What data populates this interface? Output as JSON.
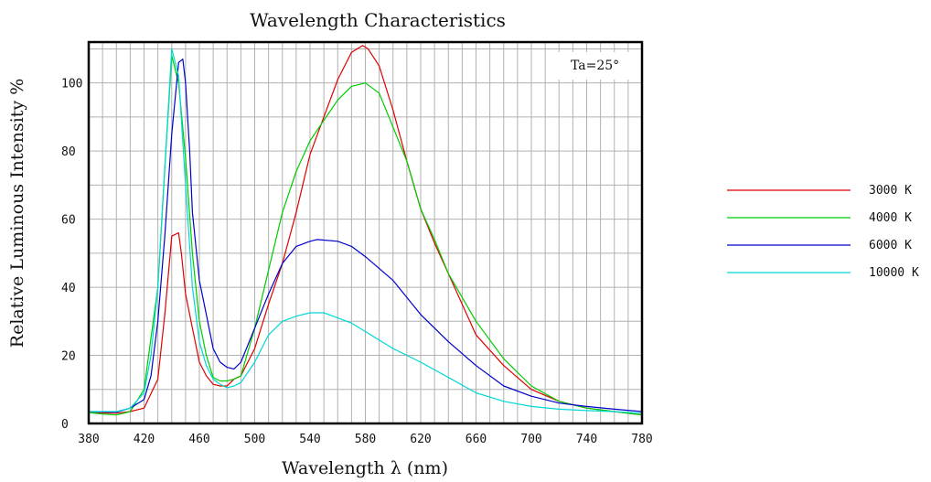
{
  "chart_data": {
    "type": "line",
    "title": "Wavelength Characteristics",
    "xlabel": "Wavelength λ (nm)",
    "ylabel": "Relative Luminous Intensity %",
    "annotation": "Ta=25°",
    "grid": true,
    "legend_position": "right",
    "xlim": [
      380,
      780
    ],
    "ylim": [
      0,
      112
    ],
    "x_ticks": [
      380,
      420,
      460,
      500,
      540,
      580,
      620,
      660,
      700,
      740,
      780
    ],
    "x_tick_labels": [
      "380",
      "420",
      "460",
      "500",
      "540",
      "580",
      "620",
      "660",
      "700",
      "740",
      "780"
    ],
    "y_ticks": [
      0,
      20,
      40,
      60,
      80,
      100
    ],
    "y_tick_labels": [
      "0",
      "20",
      "40",
      "60",
      "80",
      "100"
    ],
    "series": [
      {
        "name": "3000 K",
        "color": "#e00000",
        "x": [
          380,
          400,
          410,
          420,
          430,
          435,
          440,
          445,
          447,
          450,
          455,
          460,
          465,
          470,
          475,
          480,
          485,
          490,
          500,
          510,
          520,
          530,
          540,
          550,
          560,
          570,
          578,
          582,
          590,
          600,
          610,
          620,
          630,
          640,
          660,
          680,
          700,
          720,
          740,
          760,
          780
        ],
        "y": [
          3.2,
          3.0,
          3.5,
          4.5,
          13,
          32,
          55,
          56,
          50,
          38,
          28,
          18,
          14,
          11.5,
          11,
          11,
          13,
          14,
          22,
          35,
          47,
          62,
          79,
          90,
          101,
          109,
          111,
          110,
          105,
          92,
          77,
          63,
          53,
          44,
          26,
          17,
          10,
          6.5,
          4.5,
          3.5,
          2.5
        ]
      },
      {
        "name": "4000 K",
        "color": "#00cc00",
        "x": [
          380,
          390,
          400,
          410,
          420,
          430,
          435,
          440,
          445,
          450,
          455,
          460,
          465,
          470,
          475,
          480,
          485,
          490,
          500,
          510,
          520,
          530,
          540,
          550,
          560,
          570,
          580,
          590,
          600,
          610,
          620,
          630,
          640,
          660,
          680,
          700,
          720,
          740,
          760,
          780
        ],
        "y": [
          3.2,
          2.8,
          2.5,
          3.5,
          10,
          40,
          75,
          108,
          100,
          78,
          50,
          30,
          20,
          13.5,
          12.5,
          12.5,
          13,
          14,
          28,
          45,
          62,
          74,
          83,
          89,
          95,
          99,
          100,
          97,
          87,
          77,
          63,
          54,
          44,
          30,
          19,
          11,
          6.5,
          4.5,
          3.5,
          2.5
        ]
      },
      {
        "name": "6000 K",
        "color": "#0000cc",
        "x": [
          380,
          400,
          410,
          420,
          425,
          430,
          435,
          440,
          445,
          448,
          450,
          453,
          455,
          460,
          465,
          470,
          475,
          480,
          485,
          490,
          500,
          510,
          520,
          530,
          540,
          545,
          560,
          570,
          580,
          600,
          620,
          640,
          660,
          680,
          700,
          720,
          740,
          760,
          780
        ],
        "y": [
          3.5,
          3.3,
          4.5,
          7,
          14,
          30,
          55,
          85,
          106,
          107,
          100,
          80,
          62,
          42,
          32,
          22,
          18,
          16.5,
          16,
          18,
          28,
          38,
          47,
          52,
          53.5,
          54,
          53.5,
          52,
          49,
          42,
          32,
          24,
          17,
          11,
          8,
          6,
          5,
          4.2,
          3.5
        ]
      },
      {
        "name": "10000 K",
        "color": "#00d8d8",
        "x": [
          380,
          400,
          410,
          420,
          425,
          430,
          435,
          440,
          445,
          450,
          455,
          460,
          465,
          470,
          475,
          480,
          485,
          490,
          500,
          510,
          520,
          530,
          540,
          550,
          560,
          570,
          580,
          600,
          620,
          640,
          660,
          680,
          700,
          720,
          740,
          760,
          780
        ],
        "y": [
          3.5,
          3.5,
          4.5,
          9,
          20,
          40,
          75,
          110,
          102,
          70,
          40,
          24,
          17,
          13,
          11.5,
          10.5,
          11,
          12,
          18,
          26,
          30,
          31.5,
          32.5,
          32.5,
          31,
          29.5,
          27,
          22,
          18,
          13.5,
          9,
          6.5,
          5,
          4.2,
          3.8,
          3.5,
          3
        ]
      }
    ]
  }
}
